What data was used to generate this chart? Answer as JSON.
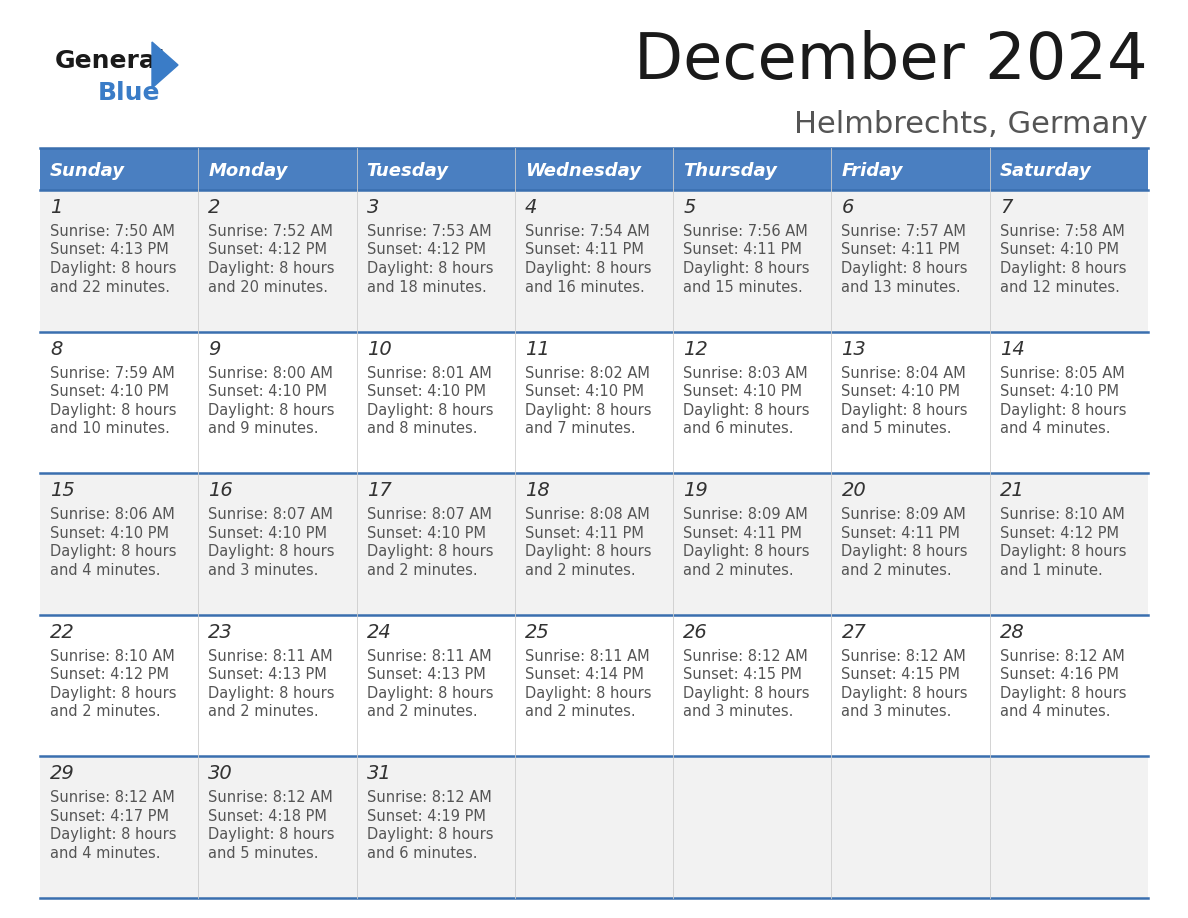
{
  "title": "December 2024",
  "subtitle": "Helmbrechts, Germany",
  "header_color": "#4a7fc1",
  "header_text_color": "#ffffff",
  "row_bg_odd": "#f2f2f2",
  "row_bg_even": "#ffffff",
  "border_color": "#3a6faf",
  "days_of_week": [
    "Sunday",
    "Monday",
    "Tuesday",
    "Wednesday",
    "Thursday",
    "Friday",
    "Saturday"
  ],
  "calendar_data": [
    [
      {
        "day": "1",
        "sunrise": "7:50 AM",
        "sunset": "4:13 PM",
        "daylight_line1": "Daylight: 8 hours",
        "daylight_line2": "and 22 minutes."
      },
      {
        "day": "2",
        "sunrise": "7:52 AM",
        "sunset": "4:12 PM",
        "daylight_line1": "Daylight: 8 hours",
        "daylight_line2": "and 20 minutes."
      },
      {
        "day": "3",
        "sunrise": "7:53 AM",
        "sunset": "4:12 PM",
        "daylight_line1": "Daylight: 8 hours",
        "daylight_line2": "and 18 minutes."
      },
      {
        "day": "4",
        "sunrise": "7:54 AM",
        "sunset": "4:11 PM",
        "daylight_line1": "Daylight: 8 hours",
        "daylight_line2": "and 16 minutes."
      },
      {
        "day": "5",
        "sunrise": "7:56 AM",
        "sunset": "4:11 PM",
        "daylight_line1": "Daylight: 8 hours",
        "daylight_line2": "and 15 minutes."
      },
      {
        "day": "6",
        "sunrise": "7:57 AM",
        "sunset": "4:11 PM",
        "daylight_line1": "Daylight: 8 hours",
        "daylight_line2": "and 13 minutes."
      },
      {
        "day": "7",
        "sunrise": "7:58 AM",
        "sunset": "4:10 PM",
        "daylight_line1": "Daylight: 8 hours",
        "daylight_line2": "and 12 minutes."
      }
    ],
    [
      {
        "day": "8",
        "sunrise": "7:59 AM",
        "sunset": "4:10 PM",
        "daylight_line1": "Daylight: 8 hours",
        "daylight_line2": "and 10 minutes."
      },
      {
        "day": "9",
        "sunrise": "8:00 AM",
        "sunset": "4:10 PM",
        "daylight_line1": "Daylight: 8 hours",
        "daylight_line2": "and 9 minutes."
      },
      {
        "day": "10",
        "sunrise": "8:01 AM",
        "sunset": "4:10 PM",
        "daylight_line1": "Daylight: 8 hours",
        "daylight_line2": "and 8 minutes."
      },
      {
        "day": "11",
        "sunrise": "8:02 AM",
        "sunset": "4:10 PM",
        "daylight_line1": "Daylight: 8 hours",
        "daylight_line2": "and 7 minutes."
      },
      {
        "day": "12",
        "sunrise": "8:03 AM",
        "sunset": "4:10 PM",
        "daylight_line1": "Daylight: 8 hours",
        "daylight_line2": "and 6 minutes."
      },
      {
        "day": "13",
        "sunrise": "8:04 AM",
        "sunset": "4:10 PM",
        "daylight_line1": "Daylight: 8 hours",
        "daylight_line2": "and 5 minutes."
      },
      {
        "day": "14",
        "sunrise": "8:05 AM",
        "sunset": "4:10 PM",
        "daylight_line1": "Daylight: 8 hours",
        "daylight_line2": "and 4 minutes."
      }
    ],
    [
      {
        "day": "15",
        "sunrise": "8:06 AM",
        "sunset": "4:10 PM",
        "daylight_line1": "Daylight: 8 hours",
        "daylight_line2": "and 4 minutes."
      },
      {
        "day": "16",
        "sunrise": "8:07 AM",
        "sunset": "4:10 PM",
        "daylight_line1": "Daylight: 8 hours",
        "daylight_line2": "and 3 minutes."
      },
      {
        "day": "17",
        "sunrise": "8:07 AM",
        "sunset": "4:10 PM",
        "daylight_line1": "Daylight: 8 hours",
        "daylight_line2": "and 2 minutes."
      },
      {
        "day": "18",
        "sunrise": "8:08 AM",
        "sunset": "4:11 PM",
        "daylight_line1": "Daylight: 8 hours",
        "daylight_line2": "and 2 minutes."
      },
      {
        "day": "19",
        "sunrise": "8:09 AM",
        "sunset": "4:11 PM",
        "daylight_line1": "Daylight: 8 hours",
        "daylight_line2": "and 2 minutes."
      },
      {
        "day": "20",
        "sunrise": "8:09 AM",
        "sunset": "4:11 PM",
        "daylight_line1": "Daylight: 8 hours",
        "daylight_line2": "and 2 minutes."
      },
      {
        "day": "21",
        "sunrise": "8:10 AM",
        "sunset": "4:12 PM",
        "daylight_line1": "Daylight: 8 hours",
        "daylight_line2": "and 1 minute."
      }
    ],
    [
      {
        "day": "22",
        "sunrise": "8:10 AM",
        "sunset": "4:12 PM",
        "daylight_line1": "Daylight: 8 hours",
        "daylight_line2": "and 2 minutes."
      },
      {
        "day": "23",
        "sunrise": "8:11 AM",
        "sunset": "4:13 PM",
        "daylight_line1": "Daylight: 8 hours",
        "daylight_line2": "and 2 minutes."
      },
      {
        "day": "24",
        "sunrise": "8:11 AM",
        "sunset": "4:13 PM",
        "daylight_line1": "Daylight: 8 hours",
        "daylight_line2": "and 2 minutes."
      },
      {
        "day": "25",
        "sunrise": "8:11 AM",
        "sunset": "4:14 PM",
        "daylight_line1": "Daylight: 8 hours",
        "daylight_line2": "and 2 minutes."
      },
      {
        "day": "26",
        "sunrise": "8:12 AM",
        "sunset": "4:15 PM",
        "daylight_line1": "Daylight: 8 hours",
        "daylight_line2": "and 3 minutes."
      },
      {
        "day": "27",
        "sunrise": "8:12 AM",
        "sunset": "4:15 PM",
        "daylight_line1": "Daylight: 8 hours",
        "daylight_line2": "and 3 minutes."
      },
      {
        "day": "28",
        "sunrise": "8:12 AM",
        "sunset": "4:16 PM",
        "daylight_line1": "Daylight: 8 hours",
        "daylight_line2": "and 4 minutes."
      }
    ],
    [
      {
        "day": "29",
        "sunrise": "8:12 AM",
        "sunset": "4:17 PM",
        "daylight_line1": "Daylight: 8 hours",
        "daylight_line2": "and 4 minutes."
      },
      {
        "day": "30",
        "sunrise": "8:12 AM",
        "sunset": "4:18 PM",
        "daylight_line1": "Daylight: 8 hours",
        "daylight_line2": "and 5 minutes."
      },
      {
        "day": "31",
        "sunrise": "8:12 AM",
        "sunset": "4:19 PM",
        "daylight_line1": "Daylight: 8 hours",
        "daylight_line2": "and 6 minutes."
      },
      null,
      null,
      null,
      null
    ]
  ],
  "logo_general_color": "#1a1a1a",
  "logo_blue_color": "#3a7cc7",
  "title_color": "#1a1a1a",
  "subtitle_color": "#555555",
  "day_number_color": "#333333",
  "cell_text_color": "#555555"
}
